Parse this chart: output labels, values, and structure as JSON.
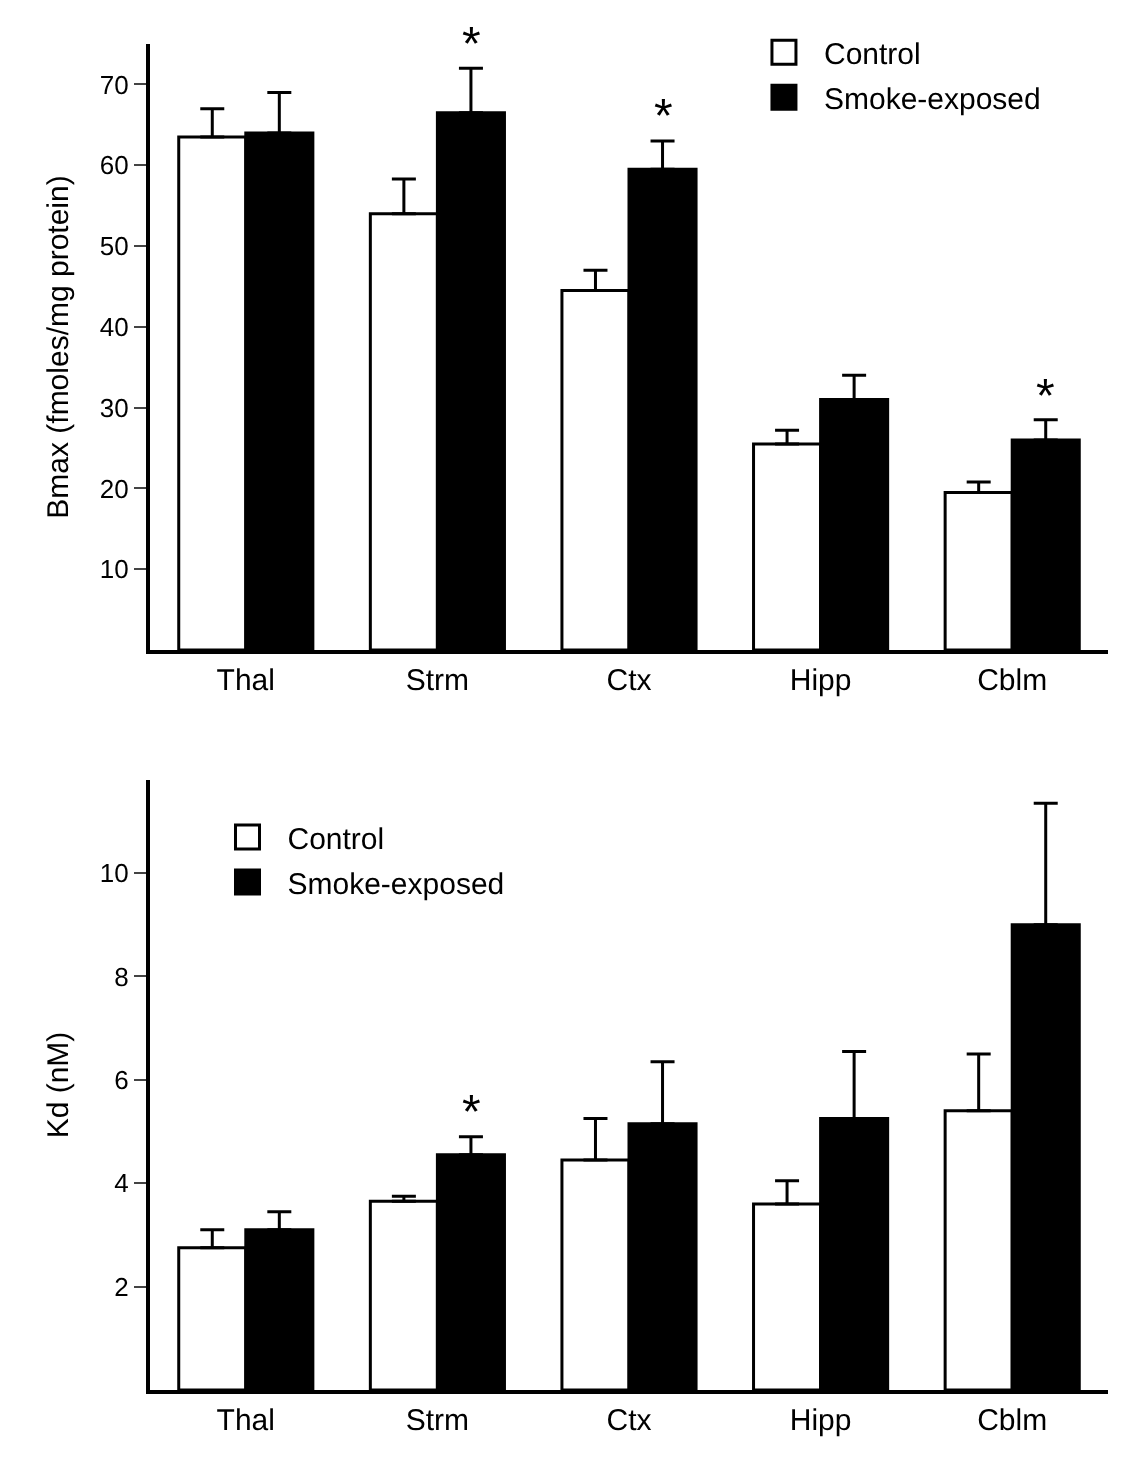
{
  "chart_data": [
    {
      "type": "bar",
      "ylabel": "Bmax (fmoles/mg protein)",
      "categories": [
        "Thal",
        "Strm",
        "Ctx",
        "Hipp",
        "Cblm"
      ],
      "ylim": [
        0,
        75
      ],
      "yticks": [
        10,
        20,
        30,
        40,
        50,
        60,
        70
      ],
      "legend": "top right",
      "grid": false,
      "series": [
        {
          "name": "Control",
          "color": "#ffffff",
          "values": [
            63.5,
            54,
            44.5,
            25.5,
            19.5
          ],
          "errors": [
            [
              63.5,
              67
            ],
            [
              54,
              58.3
            ],
            [
              44.5,
              47
            ],
            [
              25.5,
              27.2
            ],
            [
              19.5,
              20.8
            ]
          ]
        },
        {
          "name": "Smoke-exposed",
          "color": "#000000",
          "values": [
            64,
            66.5,
            59.5,
            31,
            26
          ],
          "errors": [
            [
              64,
              69
            ],
            [
              66.5,
              72
            ],
            [
              59.5,
              63
            ],
            [
              31,
              34
            ],
            [
              26,
              28.5
            ]
          ]
        }
      ],
      "annotations": [
        {
          "text": "*",
          "x": "Strm",
          "y": 66.5
        },
        {
          "text": "*",
          "x": "Ctx",
          "y": 59.5
        },
        {
          "text": "*",
          "x": "Cblm",
          "y": 26
        }
      ]
    },
    {
      "type": "bar",
      "ylabel": "Kd (nM)",
      "categories": [
        "Thal",
        "Strm",
        "Ctx",
        "Hipp",
        "Cblm"
      ],
      "ylim": [
        0,
        11.8
      ],
      "yticks": [
        2,
        4,
        6,
        8,
        10
      ],
      "legend": "top left",
      "grid": false,
      "series": [
        {
          "name": "Control",
          "color": "#ffffff",
          "values": [
            2.75,
            3.65,
            4.45,
            3.6,
            5.4
          ],
          "errors": [
            [
              2.75,
              3.1
            ],
            [
              3.65,
              3.75
            ],
            [
              4.45,
              5.25
            ],
            [
              3.6,
              4.05
            ],
            [
              5.4,
              6.5
            ]
          ]
        },
        {
          "name": "Smoke-exposed",
          "color": "#000000",
          "values": [
            3.1,
            4.55,
            5.15,
            5.25,
            9.0
          ],
          "errors": [
            [
              3.1,
              3.45
            ],
            [
              4.55,
              4.9
            ],
            [
              5.15,
              6.35
            ],
            [
              5.25,
              6.55
            ],
            [
              9.0,
              11.35
            ]
          ]
        }
      ],
      "annotations": [
        {
          "text": "*",
          "x": "Strm",
          "y": 4.55
        }
      ]
    }
  ]
}
